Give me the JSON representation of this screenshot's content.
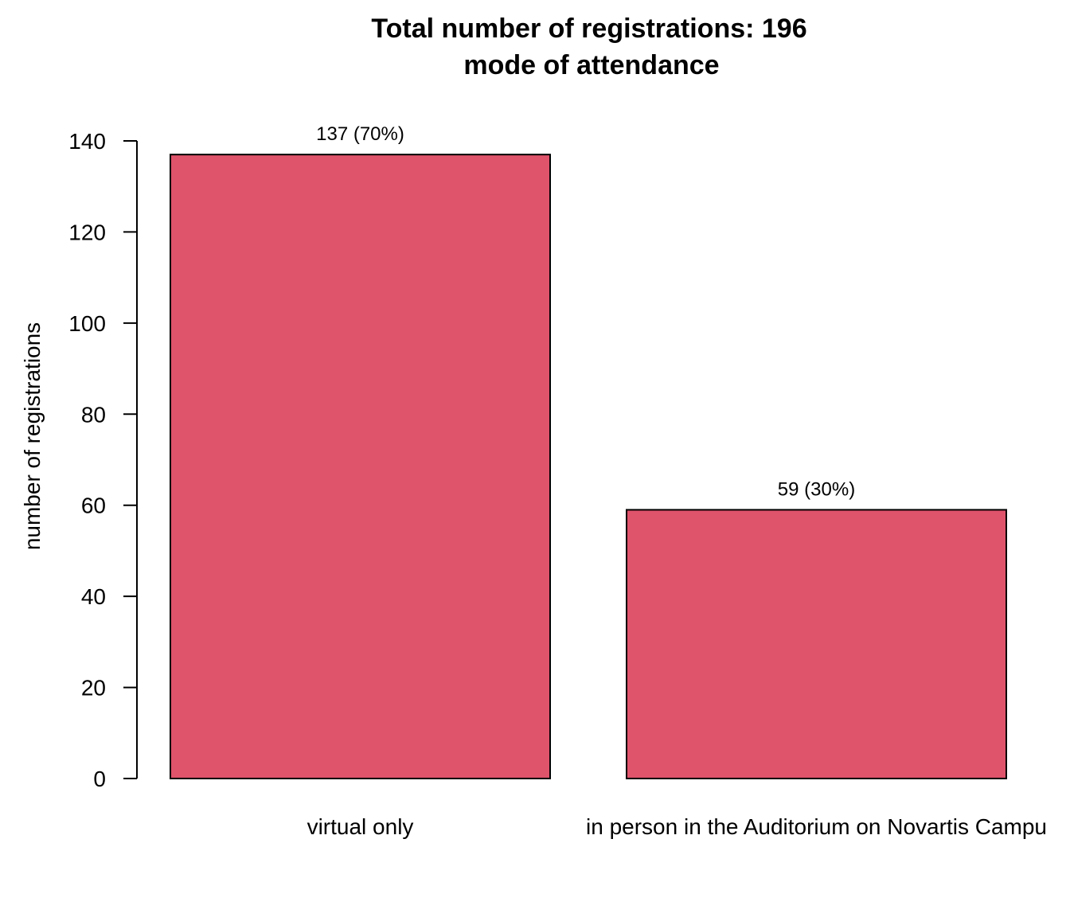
{
  "chart_data": {
    "type": "bar",
    "title": "Total number of registrations: 196",
    "subtitle": "mode of attendance",
    "xlabel": "",
    "ylabel": "number of registrations",
    "categories": [
      "virtual only",
      "in person in the Auditorium on Novartis Campu"
    ],
    "values": [
      137,
      59
    ],
    "data_labels": [
      "137 (70%)",
      "59 (30%)"
    ],
    "ylim": [
      0,
      140
    ],
    "yticks": [
      0,
      20,
      40,
      60,
      80,
      100,
      120,
      140
    ],
    "ytick_labels": [
      "0",
      "20",
      "40",
      "60",
      "80",
      "100",
      "120",
      "140"
    ],
    "grid": false,
    "bar_color": "#DF536B"
  }
}
